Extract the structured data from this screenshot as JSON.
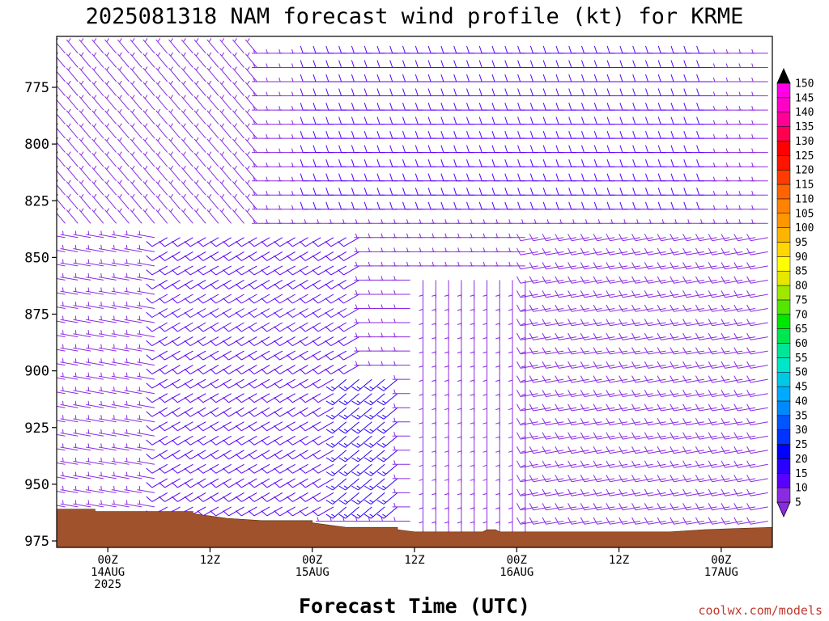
{
  "chart_data": {
    "type": "wind_barb_profile",
    "title": "2025081318 NAM forecast wind profile (kt) for KRME",
    "xlabel": "Forecast Time (UTC)",
    "ylabel": "",
    "credit": "coolwx.com/models",
    "y_ticks": [
      {
        "value": 775,
        "label": "775"
      },
      {
        "value": 800,
        "label": "800"
      },
      {
        "value": 825,
        "label": "825"
      },
      {
        "value": 850,
        "label": "850"
      },
      {
        "value": 875,
        "label": "875"
      },
      {
        "value": 900,
        "label": "900"
      },
      {
        "value": 925,
        "label": "925"
      },
      {
        "value": 950,
        "label": "950"
      },
      {
        "value": 975,
        "label": "975"
      }
    ],
    "ylim": [
      760,
      977
    ],
    "xlim_hours": [
      -6,
      78
    ],
    "x_ticks": [
      {
        "hour": 0,
        "lines": [
          "00Z",
          "14AUG",
          "2025"
        ]
      },
      {
        "hour": 12,
        "lines": [
          "12Z"
        ]
      },
      {
        "hour": 24,
        "lines": [
          "00Z",
          "15AUG"
        ]
      },
      {
        "hour": 36,
        "lines": [
          "12Z"
        ]
      },
      {
        "hour": 48,
        "lines": [
          "00Z",
          "16AUG"
        ]
      },
      {
        "hour": 60,
        "lines": [
          "12Z"
        ]
      },
      {
        "hour": 72,
        "lines": [
          "00Z",
          "17AUG"
        ]
      }
    ],
    "terrain_surface_pressure": [
      {
        "h": -6,
        "p": 961
      },
      {
        "h": -1.5,
        "p": 961
      },
      {
        "h": -1.5,
        "p": 962
      },
      {
        "h": 10,
        "p": 962
      },
      {
        "h": 10,
        "p": 963
      },
      {
        "h": 12,
        "p": 964
      },
      {
        "h": 14,
        "p": 965
      },
      {
        "h": 16,
        "p": 965.5
      },
      {
        "h": 18,
        "p": 966
      },
      {
        "h": 24,
        "p": 966
      },
      {
        "h": 24,
        "p": 967
      },
      {
        "h": 26,
        "p": 968
      },
      {
        "h": 28,
        "p": 969
      },
      {
        "h": 34,
        "p": 969
      },
      {
        "h": 34,
        "p": 970
      },
      {
        "h": 36,
        "p": 971
      },
      {
        "h": 40,
        "p": 971
      },
      {
        "h": 44,
        "p": 971
      },
      {
        "h": 44.5,
        "p": 970
      },
      {
        "h": 45.5,
        "p": 970
      },
      {
        "h": 46,
        "p": 971
      },
      {
        "h": 52,
        "p": 971
      },
      {
        "h": 60,
        "p": 971
      },
      {
        "h": 66,
        "p": 971
      },
      {
        "h": 70,
        "p": 970
      },
      {
        "h": 78,
        "p": 969
      }
    ],
    "terrain_color": "#a0522d",
    "colorbar": {
      "levels": [
        5,
        10,
        15,
        20,
        25,
        30,
        35,
        40,
        45,
        50,
        55,
        60,
        65,
        70,
        75,
        80,
        85,
        90,
        95,
        100,
        105,
        110,
        115,
        120,
        125,
        130,
        135,
        140,
        145,
        150
      ],
      "colors": [
        "#8a2be2",
        "#5a00ff",
        "#2a00ff",
        "#0000ff",
        "#0033ff",
        "#0055ff",
        "#0088ff",
        "#00aaff",
        "#00c8e6",
        "#00e6c8",
        "#00e696",
        "#00e650",
        "#00e600",
        "#55e600",
        "#a0e600",
        "#e6e600",
        "#ffff00",
        "#ffd700",
        "#ffb400",
        "#ff9600",
        "#ff8200",
        "#ff6400",
        "#ff3c00",
        "#ff1400",
        "#ff0000",
        "#ff0050",
        "#ff0096",
        "#ff00c8",
        "#ff00e6",
        "#e600ff"
      ],
      "under_color": "#8a2be2",
      "over_color": "#000000"
    },
    "wind_regions": [
      {
        "name": "upper-left northwesterly",
        "hours": [
          -6,
          18
        ],
        "pressure": [
          760,
          840
        ],
        "dir_deg": 320,
        "speed_kt": 5
      },
      {
        "name": "upper westerly jet",
        "hours": [
          24,
          72
        ],
        "pressure": [
          760,
          830
        ],
        "dir_deg": 270,
        "speed_kt": 10
      },
      {
        "name": "low-level day1 westerly",
        "hours": [
          -6,
          6
        ],
        "pressure": [
          840,
          960
        ],
        "dir_deg": 280,
        "speed_kt": 5
      },
      {
        "name": "low-level southwesterly",
        "hours": [
          6,
          30
        ],
        "pressure": [
          840,
          960
        ],
        "dir_deg": 240,
        "speed_kt": 10
      },
      {
        "name": "low-level stronger southwesterly",
        "hours": [
          28,
          34
        ],
        "pressure": [
          900,
          960
        ],
        "dir_deg": 230,
        "speed_kt": 15
      },
      {
        "name": "light variable",
        "hours": [
          36,
          50
        ],
        "pressure": [
          860,
          970
        ],
        "dir_deg": 180,
        "speed_kt": 5
      },
      {
        "name": "late westerly",
        "hours": [
          50,
          78
        ],
        "pressure": [
          840,
          970
        ],
        "dir_deg": 260,
        "speed_kt": 8
      }
    ]
  }
}
